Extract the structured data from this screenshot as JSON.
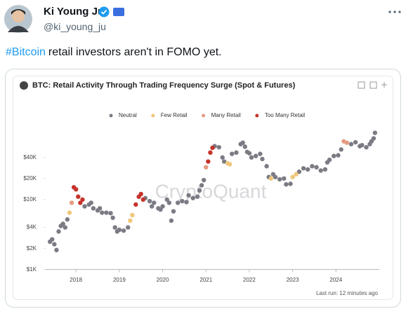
{
  "tweet": {
    "name": "Ki Young Ju",
    "handle": "@ki_young_ju",
    "hashtag": "#Bitcoin",
    "text": "retail investors aren't in FOMO yet."
  },
  "chart_data": {
    "type": "scatter",
    "title": "BTC: Retail Activity Through Trading Frequency Surge (Spot & Futures)",
    "watermark": "CryptoQuant",
    "footer": "Last run: 12 minutes ago",
    "xlim": [
      2017.3,
      2025
    ],
    "xticks": [
      2018,
      2019,
      2020,
      2021,
      2022,
      2023,
      2024
    ],
    "ylim": [
      1000,
      100000
    ],
    "log_y": true,
    "yticks": [
      {
        "value": 1000,
        "label": "$1K"
      },
      {
        "value": 2000,
        "label": "$2K"
      },
      {
        "value": 4000,
        "label": "$4K"
      },
      {
        "value": 10000,
        "label": "$10K"
      },
      {
        "value": 20000,
        "label": "$20K"
      },
      {
        "value": 40000,
        "label": "$40K"
      }
    ],
    "series": [
      {
        "name": "Neutral",
        "color": "#7b7b84",
        "x": [
          2017.4,
          2017.45,
          2017.5,
          2017.55,
          2017.6,
          2017.65,
          2017.7,
          2017.75,
          2017.8,
          2018.2,
          2018.3,
          2018.35,
          2018.4,
          2018.5,
          2018.55,
          2018.6,
          2018.7,
          2018.8,
          2018.85,
          2018.9,
          2018.95,
          2019.0,
          2019.1,
          2019.2,
          2019.6,
          2019.7,
          2019.75,
          2019.8,
          2019.9,
          2019.95,
          2020.0,
          2020.1,
          2020.15,
          2020.2,
          2020.25,
          2020.35,
          2020.45,
          2020.55,
          2020.6,
          2020.7,
          2020.8,
          2020.85,
          2020.9,
          2020.95,
          2021.2,
          2021.3,
          2021.38,
          2021.42,
          2021.6,
          2021.7,
          2021.8,
          2021.85,
          2021.9,
          2021.95,
          2022.0,
          2022.05,
          2022.15,
          2022.25,
          2022.3,
          2022.4,
          2022.45,
          2022.55,
          2022.6,
          2022.7,
          2022.8,
          2022.85,
          2022.95,
          2023.15,
          2023.25,
          2023.35,
          2023.45,
          2023.55,
          2023.65,
          2023.75,
          2023.8,
          2023.85,
          2023.95,
          2024.05,
          2024.12,
          2024.35,
          2024.45,
          2024.55,
          2024.6,
          2024.7,
          2024.78,
          2024.82,
          2024.87,
          2024.9
        ],
        "values": [
          2500,
          2700,
          2300,
          1900,
          3500,
          4200,
          4500,
          4000,
          5200,
          8000,
          8500,
          9000,
          7500,
          7000,
          7500,
          6500,
          6500,
          6400,
          5500,
          4000,
          3500,
          3700,
          3600,
          4000,
          10500,
          9500,
          8000,
          9000,
          7500,
          7200,
          8000,
          10000,
          9000,
          5000,
          6800,
          9000,
          9500,
          9200,
          11500,
          10500,
          11000,
          13500,
          16000,
          19000,
          58000,
          56000,
          40000,
          35000,
          45000,
          47000,
          62000,
          65000,
          57000,
          48000,
          46000,
          40000,
          42000,
          45000,
          38000,
          30000,
          21000,
          23000,
          21000,
          19500,
          20000,
          16500,
          16800,
          25000,
          28000,
          27000,
          30000,
          29000,
          26000,
          27000,
          34000,
          37000,
          42000,
          43000,
          52000,
          62000,
          66000,
          58000,
          60000,
          56000,
          62000,
          68000,
          75000,
          90000
        ]
      },
      {
        "name": "Few Retail",
        "color": "#efc77a",
        "x": [
          2017.85,
          2019.25,
          2019.3,
          2021.5,
          2021.55,
          2022.5,
          2023.0,
          2023.08
        ],
        "values": [
          6500,
          5000,
          6000,
          33000,
          32000,
          20000,
          21000,
          23000
        ]
      },
      {
        "name": "Many Retail",
        "color": "#e49c82",
        "x": [
          2017.9,
          2021.0,
          2024.18,
          2024.25
        ],
        "values": [
          9000,
          29000,
          68000,
          65000
        ]
      },
      {
        "name": "Too Many Retail",
        "color": "#c6332b",
        "x": [
          2017.95,
          2018.0,
          2018.05,
          2018.1,
          2018.15,
          2019.38,
          2019.45,
          2019.5,
          2019.55,
          2021.05,
          2021.1,
          2021.15
        ],
        "values": [
          15000,
          14000,
          11000,
          9000,
          10000,
          8500,
          11000,
          12000,
          10000,
          35000,
          47000,
          55000
        ]
      }
    ]
  }
}
